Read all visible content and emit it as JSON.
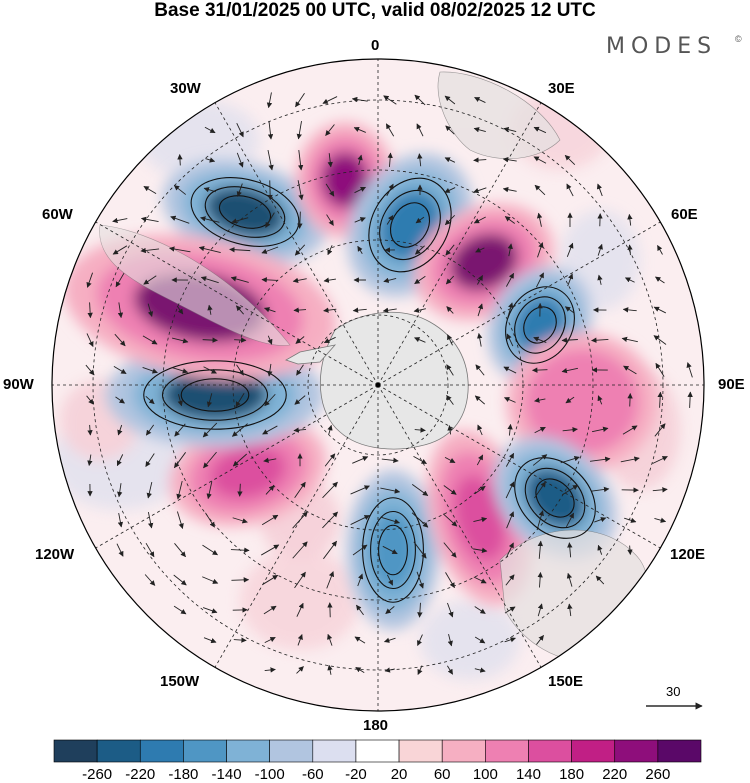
{
  "title": "Base 31/01/2025 00 UTC, valid 08/02/2025 12 UTC",
  "brand": "MODES",
  "brand_mark": "©",
  "longitude_labels": {
    "lon_0": "0",
    "lon_30e": "30E",
    "lon_60e": "60E",
    "lon_90e": "90E",
    "lon_120e": "120E",
    "lon_150e": "150E",
    "lon_180": "180",
    "lon_150w": "150W",
    "lon_120w": "120W",
    "lon_90w": "90W",
    "lon_60w": "60W",
    "lon_30w": "30W"
  },
  "reference_vector": {
    "label": "30"
  },
  "colorbar": {
    "colors": [
      "#1f3f5c",
      "#1c5c86",
      "#2e7bb0",
      "#4f96c4",
      "#7fb2d6",
      "#b1c5e0",
      "#dcdff0",
      "#ffffff",
      "#f9d5d7",
      "#f6afc2",
      "#ee80b2",
      "#dc4f9f",
      "#c11f85",
      "#8e0e7b",
      "#5a0868"
    ],
    "labels": [
      "-260",
      "-220",
      "-180",
      "-140",
      "-100",
      "-60",
      "-20",
      "20",
      "60",
      "100",
      "140",
      "180",
      "220",
      "260"
    ]
  },
  "anomaly_centers": [
    {
      "sign": "negative",
      "strength": 3,
      "color": "#1f4f72"
    },
    {
      "sign": "positive",
      "strength": 3,
      "color": "#7a1470"
    },
    {
      "sign": "negative",
      "strength": 3,
      "color": "#1f4f72"
    },
    {
      "sign": "positive",
      "strength": 3,
      "color": "#7a1470"
    },
    {
      "sign": "negative",
      "strength": 2,
      "color": "#2e7bb0"
    },
    {
      "sign": "positive",
      "strength": 2,
      "color": "#c11f85"
    },
    {
      "sign": "negative",
      "strength": 2,
      "color": "#2e7bb0"
    },
    {
      "sign": "positive",
      "strength": 2,
      "color": "#dc4f9f"
    },
    {
      "sign": "negative",
      "strength": 3,
      "color": "#1c5c86"
    },
    {
      "sign": "positive",
      "strength": 2,
      "color": "#dc4f9f"
    },
    {
      "sign": "negative",
      "strength": 2,
      "color": "#4f96c4"
    },
    {
      "sign": "positive",
      "strength": 1,
      "color": "#ee80b2"
    }
  ]
}
